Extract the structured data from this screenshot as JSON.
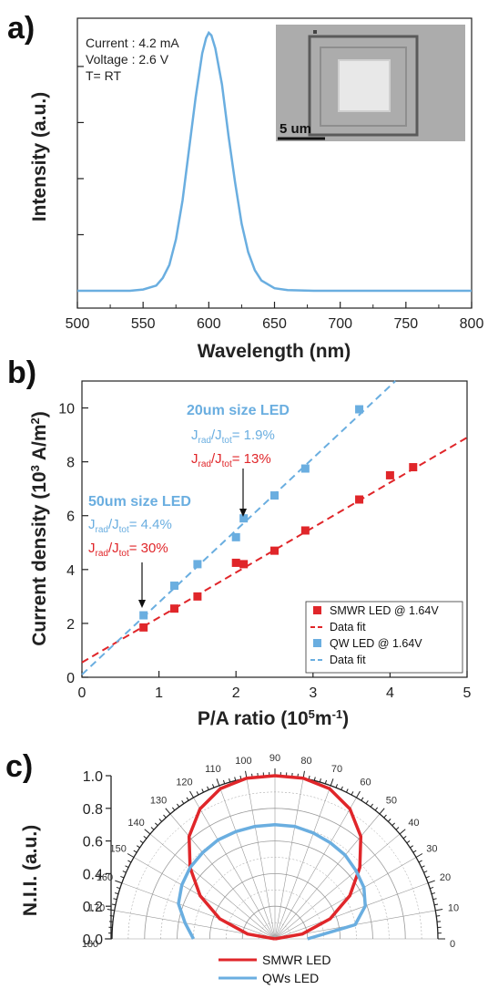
{
  "colors": {
    "blue": "#6aaee0",
    "red": "#e0262a",
    "grid": "#999999"
  },
  "chart_data": [
    {
      "panel": "a)",
      "type": "line",
      "xlabel": "Wavelength (nm)",
      "ylabel": "Intensity (a.u.)",
      "xlim": [
        500,
        800
      ],
      "xticks": [
        "500",
        "550",
        "600",
        "650",
        "700",
        "750",
        "800"
      ],
      "ylim": [
        0,
        1.0
      ],
      "annotations": [
        "Current : 4.2 mA",
        "Voltage : 2.6 V",
        "T= RT"
      ],
      "inset_scale_label": "5 um",
      "series": [
        {
          "x": [
            500,
            540,
            550,
            560,
            565,
            570,
            575,
            580,
            585,
            590,
            595,
            598,
            600,
            602,
            605,
            610,
            615,
            620,
            625,
            630,
            635,
            640,
            650,
            660,
            680,
            800
          ],
          "y": [
            0.0,
            0.0,
            0.005,
            0.02,
            0.05,
            0.1,
            0.2,
            0.35,
            0.55,
            0.75,
            0.92,
            0.98,
            1.0,
            0.99,
            0.94,
            0.8,
            0.6,
            0.42,
            0.26,
            0.15,
            0.08,
            0.04,
            0.01,
            0.003,
            0.0,
            0.0
          ]
        }
      ]
    },
    {
      "panel": "b)",
      "type": "scatter",
      "xlabel": "P/A ratio (10⁵m⁻¹)",
      "ylabel": "Current density (10³ A/m²)",
      "xlim": [
        0,
        5
      ],
      "ylim": [
        0,
        11
      ],
      "xticks": [
        "0",
        "1",
        "2",
        "3",
        "4",
        "5"
      ],
      "yticks": [
        "0",
        "2",
        "4",
        "6",
        "8",
        "10"
      ],
      "annotations": [
        {
          "text": "20um size LED",
          "color": "blue",
          "bold": true
        },
        {
          "text": "Jrad/Jtot= 1.9%",
          "color": "blue"
        },
        {
          "text": "Jrad/Jtot= 13%",
          "color": "red"
        },
        {
          "text": "50um size LED",
          "color": "blue",
          "bold": true
        },
        {
          "text": "Jrad/Jtot= 4.4%",
          "color": "blue"
        },
        {
          "text": "Jrad/Jtot= 30%",
          "color": "red"
        }
      ],
      "legend_position": "bottom-right",
      "series": [
        {
          "name": "SMWR LED @ 1.64V",
          "color": "red",
          "x": [
            0.8,
            1.2,
            1.5,
            2.0,
            2.1,
            2.5,
            2.9,
            3.6,
            4.0,
            4.3
          ],
          "y": [
            1.85,
            2.55,
            3.0,
            4.25,
            4.2,
            4.7,
            5.45,
            6.6,
            7.5,
            7.8
          ]
        },
        {
          "name": "Data fit",
          "color": "red",
          "fit": true,
          "x": [
            0,
            5
          ],
          "y": [
            0.55,
            8.9
          ]
        },
        {
          "name": "QW LED @ 1.64V",
          "color": "blue",
          "x": [
            0.8,
            1.2,
            1.5,
            2.0,
            2.1,
            2.5,
            2.9,
            3.6
          ],
          "y": [
            2.3,
            3.4,
            4.2,
            5.2,
            5.9,
            6.75,
            7.75,
            9.95
          ]
        },
        {
          "name": "Data fit",
          "color": "blue",
          "fit": true,
          "x": [
            0,
            4.07
          ],
          "y": [
            0.1,
            11
          ]
        }
      ]
    },
    {
      "panel": "c)",
      "type": "polar",
      "ylabel": "N.I.I. (a.u.)",
      "angle_range": [
        0,
        180
      ],
      "angle_ticks": [
        "0",
        "10",
        "20",
        "30",
        "40",
        "50",
        "60",
        "70",
        "80",
        "90",
        "100",
        "110",
        "120",
        "130",
        "140",
        "150",
        "160",
        "170",
        "180"
      ],
      "rlim": [
        0,
        1.0
      ],
      "rticks": [
        "0.0",
        "0.2",
        "0.4",
        "0.6",
        "0.8",
        "1.0"
      ],
      "legend_position": "bottom",
      "series": [
        {
          "name": "SMWR LED",
          "color": "red",
          "angles": [
            0,
            10,
            20,
            30,
            40,
            50,
            60,
            70,
            80,
            90,
            100,
            110,
            120,
            130,
            140,
            150,
            160,
            170,
            180
          ],
          "r": [
            0.0,
            0.17,
            0.36,
            0.53,
            0.68,
            0.82,
            0.92,
            0.98,
            1.0,
            1.0,
            1.0,
            0.98,
            0.92,
            0.82,
            0.68,
            0.53,
            0.36,
            0.17,
            0.0
          ]
        },
        {
          "name": "QWs LED",
          "color": "blue",
          "angles": [
            0,
            10,
            20,
            30,
            40,
            50,
            60,
            70,
            80,
            90,
            100,
            110,
            120,
            130,
            140,
            150,
            160,
            170,
            180
          ],
          "r": [
            0.2,
            0.5,
            0.59,
            0.63,
            0.65,
            0.67,
            0.68,
            0.69,
            0.7,
            0.7,
            0.7,
            0.7,
            0.7,
            0.69,
            0.68,
            0.66,
            0.63,
            0.56,
            0.5
          ]
        }
      ]
    }
  ]
}
